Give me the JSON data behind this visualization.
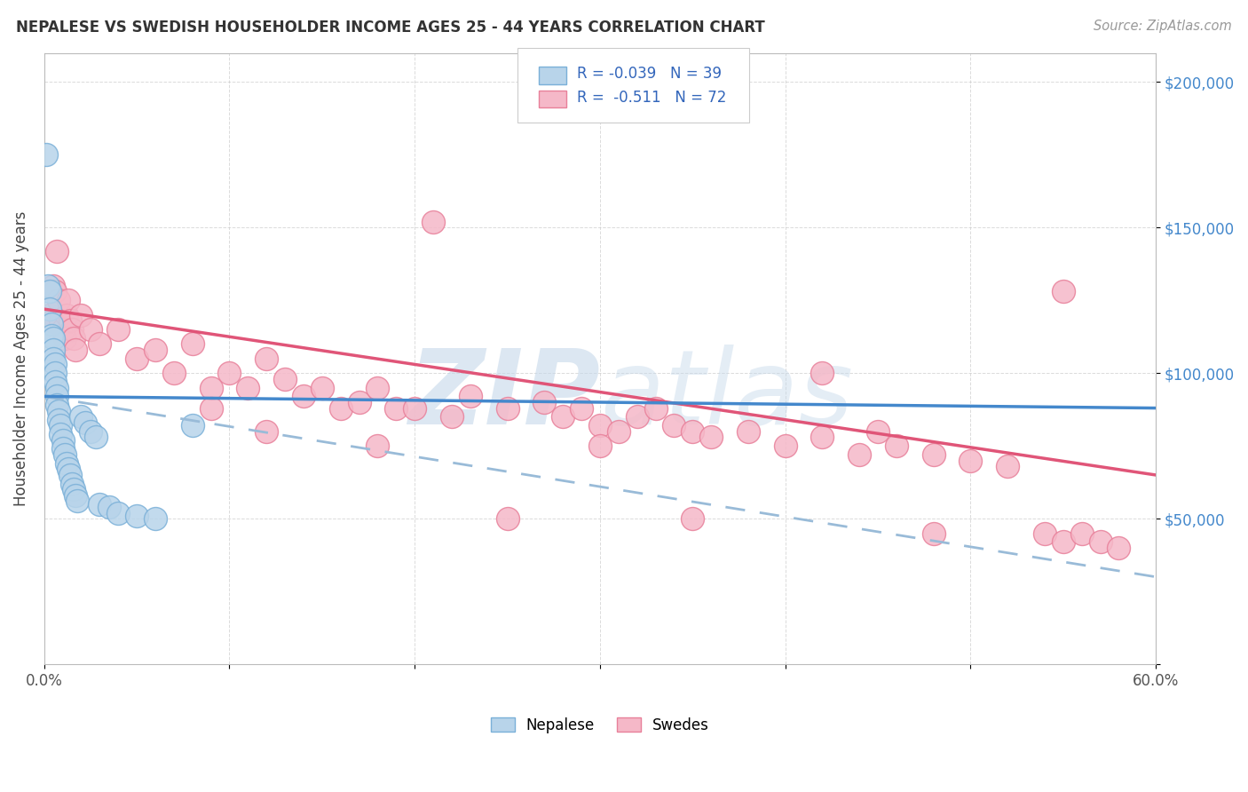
{
  "title": "NEPALESE VS SWEDISH HOUSEHOLDER INCOME AGES 25 - 44 YEARS CORRELATION CHART",
  "source": "Source: ZipAtlas.com",
  "ylabel": "Householder Income Ages 25 - 44 years",
  "xlim": [
    0.0,
    0.6
  ],
  "ylim": [
    0,
    210000
  ],
  "xticks": [
    0.0,
    0.1,
    0.2,
    0.3,
    0.4,
    0.5,
    0.6
  ],
  "xticklabels": [
    "0.0%",
    "",
    "",
    "",
    "",
    "",
    "60.0%"
  ],
  "ytick_positions": [
    0,
    50000,
    100000,
    150000,
    200000
  ],
  "ytick_labels_right": [
    "",
    "$50,000",
    "$100,000",
    "$150,000",
    "$200,000"
  ],
  "nepalese_color": "#b8d4ea",
  "swedes_color": "#f5b8c8",
  "nepalese_edge": "#7ab0d8",
  "swedes_edge": "#e8809a",
  "trend_nepalese_color": "#4488cc",
  "trend_swedes_color": "#e05578",
  "trend_dashed_color": "#99bbd8",
  "R_nepalese": -0.039,
  "N_nepalese": 39,
  "R_swedes": -0.511,
  "N_swedes": 72,
  "background_color": "#ffffff",
  "grid_color": "#cccccc",
  "watermark_color": "#c5d8ea",
  "legend_labels": [
    "Nepalese",
    "Swedes"
  ],
  "nepalese_x": [
    0.001,
    0.002,
    0.003,
    0.003,
    0.004,
    0.004,
    0.005,
    0.005,
    0.005,
    0.006,
    0.006,
    0.006,
    0.007,
    0.007,
    0.007,
    0.008,
    0.008,
    0.009,
    0.009,
    0.01,
    0.01,
    0.011,
    0.012,
    0.013,
    0.014,
    0.015,
    0.016,
    0.017,
    0.018,
    0.02,
    0.022,
    0.025,
    0.028,
    0.03,
    0.035,
    0.04,
    0.05,
    0.06,
    0.08
  ],
  "nepalese_y": [
    175000,
    130000,
    128000,
    122000,
    117000,
    113000,
    112000,
    108000,
    105000,
    103000,
    100000,
    97000,
    95000,
    92000,
    89000,
    87000,
    84000,
    82000,
    79000,
    77000,
    74000,
    72000,
    69000,
    67000,
    65000,
    62000,
    60000,
    58000,
    56000,
    85000,
    83000,
    80000,
    78000,
    55000,
    54000,
    52000,
    51000,
    50000,
    82000
  ],
  "swedes_x": [
    0.003,
    0.004,
    0.005,
    0.006,
    0.007,
    0.008,
    0.009,
    0.01,
    0.011,
    0.012,
    0.013,
    0.014,
    0.015,
    0.016,
    0.017,
    0.02,
    0.025,
    0.03,
    0.04,
    0.05,
    0.06,
    0.07,
    0.08,
    0.09,
    0.1,
    0.11,
    0.12,
    0.13,
    0.14,
    0.15,
    0.16,
    0.17,
    0.18,
    0.19,
    0.2,
    0.21,
    0.22,
    0.23,
    0.25,
    0.27,
    0.28,
    0.29,
    0.3,
    0.31,
    0.32,
    0.33,
    0.34,
    0.35,
    0.36,
    0.38,
    0.4,
    0.42,
    0.44,
    0.45,
    0.46,
    0.48,
    0.5,
    0.52,
    0.54,
    0.55,
    0.56,
    0.57,
    0.58,
    0.09,
    0.12,
    0.18,
    0.25,
    0.3,
    0.35,
    0.42,
    0.48,
    0.55
  ],
  "swedes_y": [
    120000,
    118000,
    130000,
    128000,
    142000,
    125000,
    118000,
    115000,
    112000,
    120000,
    125000,
    118000,
    115000,
    112000,
    108000,
    120000,
    115000,
    110000,
    115000,
    105000,
    108000,
    100000,
    110000,
    95000,
    100000,
    95000,
    105000,
    98000,
    92000,
    95000,
    88000,
    90000,
    95000,
    88000,
    88000,
    152000,
    85000,
    92000,
    88000,
    90000,
    85000,
    88000,
    82000,
    80000,
    85000,
    88000,
    82000,
    80000,
    78000,
    80000,
    75000,
    78000,
    72000,
    80000,
    75000,
    72000,
    70000,
    68000,
    45000,
    42000,
    45000,
    42000,
    40000,
    88000,
    80000,
    75000,
    50000,
    75000,
    50000,
    100000,
    45000,
    128000
  ],
  "nep_trend_x0": 0.0,
  "nep_trend_y0": 92000,
  "nep_trend_x1": 0.6,
  "nep_trend_y1": 88000,
  "sw_trend_x0": 0.0,
  "sw_trend_y0": 122000,
  "sw_trend_x1": 0.6,
  "sw_trend_y1": 65000,
  "dash_trend_x0": 0.0,
  "dash_trend_y0": 92000,
  "dash_trend_x1": 0.6,
  "dash_trend_y1": 30000
}
